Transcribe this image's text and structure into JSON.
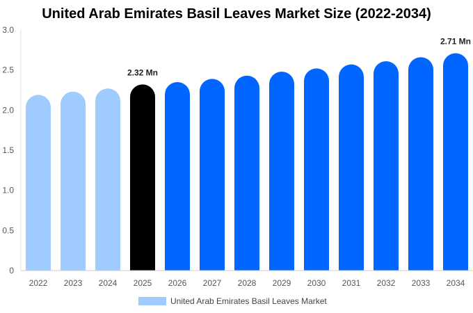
{
  "chart_data": {
    "type": "bar",
    "title": "United Arab Emirates Basil Leaves Market Size (2022-2034)",
    "xlabel": "",
    "ylabel": "",
    "categories": [
      "2022",
      "2023",
      "2024",
      "2025",
      "2026",
      "2027",
      "2028",
      "2029",
      "2030",
      "2031",
      "2032",
      "2033",
      "2034"
    ],
    "series": [
      {
        "name": "United Arab Emirates Basil Leaves Market",
        "values": [
          2.19,
          2.23,
          2.27,
          2.32,
          2.35,
          2.39,
          2.43,
          2.48,
          2.52,
          2.57,
          2.61,
          2.66,
          2.71
        ]
      }
    ],
    "ylim": [
      0,
      3.0
    ],
    "yticks": [
      "0",
      "0.5",
      "1.0",
      "1.5",
      "2.0",
      "2.5",
      "3.0"
    ],
    "ytick_values": [
      0,
      0.5,
      1.0,
      1.5,
      2.0,
      2.5,
      3.0
    ],
    "data_labels": [
      {
        "category": "2025",
        "text": "2.32 Mn"
      },
      {
        "category": "2034",
        "text": "2.71 Mn"
      }
    ],
    "colors": {
      "historical": "#a0cbff",
      "current": "#000000",
      "forecast": "#0066ff"
    },
    "bar_color_groups": [
      "historical",
      "historical",
      "historical",
      "current",
      "forecast",
      "forecast",
      "forecast",
      "forecast",
      "forecast",
      "forecast",
      "forecast",
      "forecast",
      "forecast"
    ],
    "grid": false,
    "legend": {
      "position": "bottom-center",
      "label": "United Arab Emirates Basil Leaves Market",
      "color": "#a0cbff"
    }
  }
}
